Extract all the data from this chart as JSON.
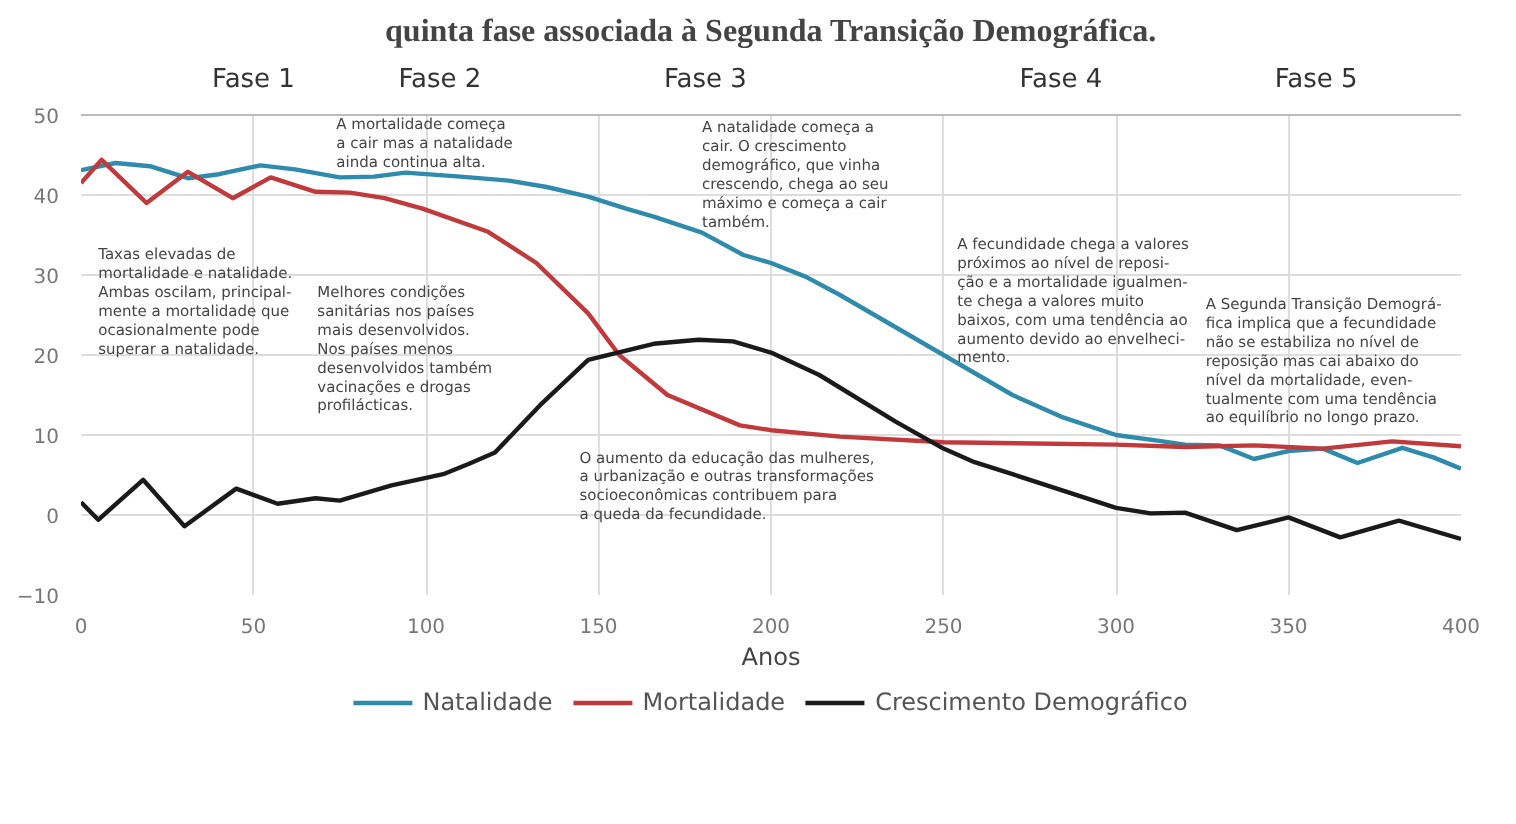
{
  "chart_data": {
    "type": "line",
    "title": "quinta fase associada à Segunda Transição Demográfica.",
    "xlabel": "Anos",
    "xlim": [
      0,
      400
    ],
    "ylim": [
      -10,
      50
    ],
    "xticks": [
      0,
      50,
      100,
      150,
      200,
      250,
      300,
      350,
      400
    ],
    "yticks": [
      -10,
      0,
      10,
      20,
      30,
      40,
      50
    ],
    "grid": true,
    "legend": "bottom",
    "line_style": "solid",
    "marker": "none",
    "series": [
      {
        "name": "Natalidade",
        "color": "#2e8bab",
        "x": [
          0,
          10,
          20,
          31,
          40,
          52,
          62,
          75,
          85,
          94,
          110,
          124,
          135,
          147,
          158,
          166,
          180,
          192,
          200,
          210,
          220,
          230,
          240,
          250,
          260,
          270,
          284,
          300,
          312,
          320,
          330,
          340,
          350,
          360,
          370,
          383,
          392,
          400
        ],
        "values": [
          43.1,
          44,
          43.6,
          42.1,
          42.6,
          43.7,
          43.2,
          42.2,
          42.3,
          42.8,
          42.3,
          41.8,
          41,
          39.8,
          38.3,
          37.3,
          35.3,
          32.5,
          31.5,
          29.8,
          27.5,
          25,
          22.5,
          20,
          17.5,
          15,
          12.3,
          10,
          9.3,
          8.8,
          8.7,
          7,
          8,
          8.3,
          6.5,
          8.4,
          7.2,
          5.8
        ]
      },
      {
        "name": "Mortalidade",
        "color": "#c0393b",
        "x": [
          0,
          6,
          19,
          31,
          44,
          55,
          68,
          78,
          88,
          99,
          118,
          132,
          147,
          156,
          170,
          191,
          200,
          220,
          250,
          300,
          320,
          340,
          360,
          380,
          400
        ],
        "values": [
          41.5,
          44.4,
          39,
          42.9,
          39.6,
          42.2,
          40.4,
          40.3,
          39.6,
          38.3,
          35.4,
          31.5,
          25.2,
          20,
          15,
          11.2,
          10.6,
          9.8,
          9.1,
          8.8,
          8.5,
          8.7,
          8.3,
          9.2,
          8.6
        ]
      },
      {
        "name": "Crescimento Demográfico",
        "color": "#1a1a1a",
        "x": [
          0,
          5,
          18,
          30,
          45,
          57,
          68,
          75,
          90,
          105,
          113,
          120,
          133,
          147,
          166,
          179,
          189,
          200,
          214,
          236,
          250,
          259,
          270,
          290,
          300,
          310,
          320,
          335,
          350,
          365,
          382,
          400
        ],
        "values": [
          1.6,
          -0.6,
          4.4,
          -1.4,
          3.3,
          1.4,
          2.1,
          1.8,
          3.7,
          5.1,
          6.5,
          7.8,
          13.7,
          19.4,
          21.4,
          21.9,
          21.7,
          20.3,
          17.5,
          11.7,
          8.3,
          6.6,
          5.1,
          2.3,
          0.9,
          0.2,
          0.3,
          -1.9,
          -0.3,
          -2.8,
          -0.7,
          -3
        ]
      }
    ],
    "annotations": [
      "Fase 1",
      "Fase 2",
      "Fase 3",
      "Fase 4",
      "Fase 5",
      "Taxas elevadas de\nmortalidade e natalidade.\nAmbas oscilam, principal-\nmente a mortalidade que\nocasionalmente pode\nsuperar a natalidade.",
      "A mortalidade começa\na cair mas a natalidade\nainda continua alta.",
      "Melhores condições\nsanitárias nos países\nmais desenvolvidos.\nNos países menos\ndesenvolvidos também\nvacinações e drogas\nprofilácticas.",
      "A natalidade começa a\ncair. O crescimento\ndemográfico, que vinha\ncrescendo, chega ao seu\nmáximo e começa a cair\n também.",
      "O aumento da educação das mulheres,\na urbanização e outras transformações\nsocioeconômicas contribuem para\na queda da fecundidade.",
      "A fecundidade chega a valores\npróximos ao nível de reposi-\nção e a mortalidade igualmen-\nte chega a valores muito\nbaixos, com uma tendência ao\naumento devido ao envelheci-\nmento.",
      "A Segunda Transição Demográ-\nfica implica que a fecundidade\nnão se estabiliza no nível de\nreposição mas cai abaixo do\nnível da mortalidade, even-\ntualmente com uma tendência\nao equilíbrio no longo prazo."
    ]
  }
}
